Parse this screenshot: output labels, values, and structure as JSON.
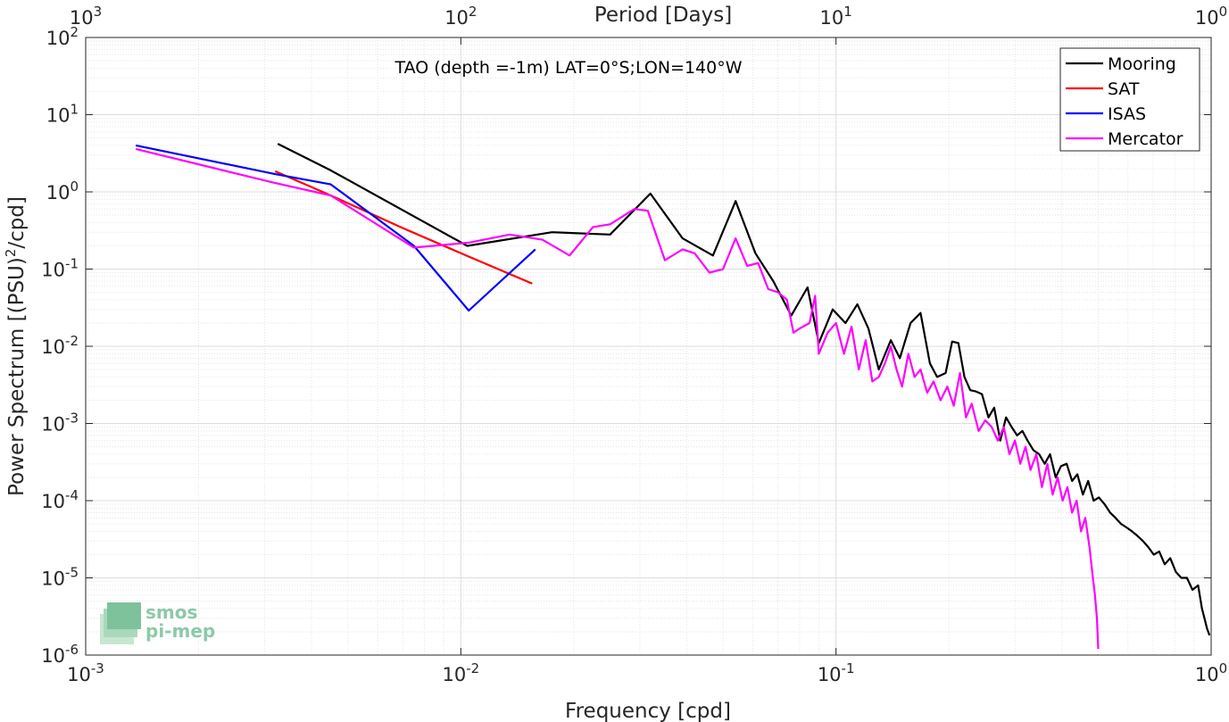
{
  "chart_data": {
    "type": "line",
    "title": "TAO (depth =-1m) LAT=0°S;LON=140°W",
    "xlabel": "Frequency [cpd]",
    "ylabel_main": "Power Spectrum [(PSU)",
    "ylabel_sup": "2",
    "ylabel_tail": "/cpd]",
    "top_axis_label": "Period [Days]",
    "x_scale": "log",
    "y_scale": "log",
    "xlim": [
      0.001,
      1
    ],
    "ylim": [
      1e-06,
      100
    ],
    "grid": true,
    "minor_grid": true,
    "legend_position": "top-right",
    "x_ticks": [
      {
        "value": 0.001,
        "base": "10",
        "exp": "-3"
      },
      {
        "value": 0.01,
        "base": "10",
        "exp": "-2"
      },
      {
        "value": 0.1,
        "base": "10",
        "exp": "-1"
      },
      {
        "value": 1,
        "base": "10",
        "exp": "0"
      }
    ],
    "y_ticks": [
      {
        "value": 100,
        "base": "10",
        "exp": "2"
      },
      {
        "value": 10,
        "base": "10",
        "exp": "1"
      },
      {
        "value": 1,
        "base": "10",
        "exp": "0"
      },
      {
        "value": 0.1,
        "base": "10",
        "exp": "-1"
      },
      {
        "value": 0.01,
        "base": "10",
        "exp": "-2"
      },
      {
        "value": 0.001,
        "base": "10",
        "exp": "-3"
      },
      {
        "value": 0.0001,
        "base": "10",
        "exp": "-4"
      },
      {
        "value": 1e-05,
        "base": "10",
        "exp": "-5"
      },
      {
        "value": 1e-06,
        "base": "10",
        "exp": "-6"
      }
    ],
    "top_ticks": [
      {
        "freq": 0.001,
        "base": "10",
        "exp": "3"
      },
      {
        "freq": 0.01,
        "base": "10",
        "exp": "2"
      },
      {
        "freq": 0.1,
        "base": "10",
        "exp": "1"
      },
      {
        "freq": 1,
        "base": "10",
        "exp": "0"
      }
    ],
    "series": [
      {
        "name": "Mooring",
        "color": "#000000",
        "points": [
          [
            0.00325,
            4.2
          ],
          [
            0.0045,
            1.9
          ],
          [
            0.0104,
            0.2
          ],
          [
            0.0175,
            0.3
          ],
          [
            0.025,
            0.28
          ],
          [
            0.032,
            0.95
          ],
          [
            0.039,
            0.25
          ],
          [
            0.047,
            0.15
          ],
          [
            0.054,
            0.76
          ],
          [
            0.061,
            0.16
          ],
          [
            0.068,
            0.07
          ],
          [
            0.076,
            0.025
          ],
          [
            0.084,
            0.058
          ],
          [
            0.09,
            0.011
          ],
          [
            0.098,
            0.03
          ],
          [
            0.106,
            0.02
          ],
          [
            0.114,
            0.035
          ],
          [
            0.122,
            0.017
          ],
          [
            0.13,
            0.005
          ],
          [
            0.14,
            0.012
          ],
          [
            0.148,
            0.007
          ],
          [
            0.158,
            0.02
          ],
          [
            0.168,
            0.027
          ],
          [
            0.178,
            0.006
          ],
          [
            0.186,
            0.004
          ],
          [
            0.196,
            0.0045
          ],
          [
            0.204,
            0.0115
          ],
          [
            0.212,
            0.011
          ],
          [
            0.22,
            0.004
          ],
          [
            0.228,
            0.0027
          ],
          [
            0.236,
            0.0026
          ],
          [
            0.245,
            0.0024
          ],
          [
            0.255,
            0.0012
          ],
          [
            0.264,
            0.0016
          ],
          [
            0.274,
            0.0006
          ],
          [
            0.284,
            0.0012
          ],
          [
            0.294,
            0.0009
          ],
          [
            0.304,
            0.0007
          ],
          [
            0.314,
            0.0008
          ],
          [
            0.324,
            0.0006
          ],
          [
            0.336,
            0.00045
          ],
          [
            0.348,
            0.0004
          ],
          [
            0.36,
            0.0003
          ],
          [
            0.372,
            0.0004
          ],
          [
            0.385,
            0.0002
          ],
          [
            0.398,
            0.00028
          ],
          [
            0.412,
            0.0003
          ],
          [
            0.426,
            0.00018
          ],
          [
            0.44,
            0.00022
          ],
          [
            0.455,
            0.00012
          ],
          [
            0.47,
            0.00018
          ],
          [
            0.486,
            0.0001
          ],
          [
            0.502,
            0.00011
          ],
          [
            0.52,
            9e-05
          ],
          [
            0.538,
            7e-05
          ],
          [
            0.556,
            6e-05
          ],
          [
            0.575,
            5e-05
          ],
          [
            0.595,
            4.5e-05
          ],
          [
            0.615,
            4e-05
          ],
          [
            0.636,
            3.5e-05
          ],
          [
            0.658,
            3e-05
          ],
          [
            0.68,
            2.5e-05
          ],
          [
            0.703,
            2e-05
          ],
          [
            0.727,
            2.2e-05
          ],
          [
            0.752,
            1.5e-05
          ],
          [
            0.778,
            1.8e-05
          ],
          [
            0.805,
            1.2e-05
          ],
          [
            0.833,
            1e-05
          ],
          [
            0.862,
            1e-05
          ],
          [
            0.892,
            7e-06
          ],
          [
            0.923,
            8e-06
          ],
          [
            0.945,
            4e-06
          ],
          [
            0.96,
            3e-06
          ],
          [
            0.975,
            2.2e-06
          ],
          [
            0.99,
            1.8e-06
          ]
        ]
      },
      {
        "name": "SAT",
        "color": "#ff0000",
        "points": [
          [
            0.0032,
            1.85
          ],
          [
            0.0045,
            0.9
          ],
          [
            0.007,
            0.34
          ],
          [
            0.0105,
            0.145
          ],
          [
            0.0155,
            0.065
          ]
        ]
      },
      {
        "name": "ISAS",
        "color": "#0000ff",
        "points": [
          [
            0.00136,
            4.0
          ],
          [
            0.0032,
            1.7
          ],
          [
            0.0045,
            1.25
          ],
          [
            0.0075,
            0.2
          ],
          [
            0.0105,
            0.029
          ],
          [
            0.0158,
            0.18
          ]
        ]
      },
      {
        "name": "Mercator",
        "color": "#ff00ff",
        "points": [
          [
            0.00136,
            3.6
          ],
          [
            0.0032,
            1.3
          ],
          [
            0.0045,
            0.9
          ],
          [
            0.0075,
            0.19
          ],
          [
            0.0105,
            0.22
          ],
          [
            0.0135,
            0.28
          ],
          [
            0.0165,
            0.24
          ],
          [
            0.0195,
            0.15
          ],
          [
            0.0225,
            0.35
          ],
          [
            0.025,
            0.38
          ],
          [
            0.029,
            0.6
          ],
          [
            0.0315,
            0.57
          ],
          [
            0.035,
            0.13
          ],
          [
            0.039,
            0.18
          ],
          [
            0.042,
            0.16
          ],
          [
            0.046,
            0.09
          ],
          [
            0.05,
            0.1
          ],
          [
            0.054,
            0.25
          ],
          [
            0.058,
            0.11
          ],
          [
            0.062,
            0.12
          ],
          [
            0.066,
            0.055
          ],
          [
            0.07,
            0.05
          ],
          [
            0.074,
            0.04
          ],
          [
            0.077,
            0.015
          ],
          [
            0.08,
            0.017
          ],
          [
            0.085,
            0.02
          ],
          [
            0.088,
            0.045
          ],
          [
            0.09,
            0.008
          ],
          [
            0.095,
            0.015
          ],
          [
            0.1,
            0.02
          ],
          [
            0.105,
            0.008
          ],
          [
            0.11,
            0.018
          ],
          [
            0.115,
            0.005
          ],
          [
            0.12,
            0.012
          ],
          [
            0.125,
            0.0035
          ],
          [
            0.13,
            0.004
          ],
          [
            0.135,
            0.006
          ],
          [
            0.14,
            0.01
          ],
          [
            0.145,
            0.005
          ],
          [
            0.15,
            0.003
          ],
          [
            0.156,
            0.008
          ],
          [
            0.162,
            0.004
          ],
          [
            0.168,
            0.005
          ],
          [
            0.175,
            0.0025
          ],
          [
            0.182,
            0.0035
          ],
          [
            0.19,
            0.002
          ],
          [
            0.198,
            0.003
          ],
          [
            0.206,
            0.0017
          ],
          [
            0.214,
            0.0045
          ],
          [
            0.222,
            0.0012
          ],
          [
            0.23,
            0.0018
          ],
          [
            0.24,
            0.0008
          ],
          [
            0.25,
            0.0011
          ],
          [
            0.26,
            0.0009
          ],
          [
            0.27,
            0.0006
          ],
          [
            0.28,
            0.0009
          ],
          [
            0.29,
            0.0004
          ],
          [
            0.3,
            0.0006
          ],
          [
            0.31,
            0.0003
          ],
          [
            0.32,
            0.0005
          ],
          [
            0.33,
            0.00025
          ],
          [
            0.342,
            0.0004
          ],
          [
            0.354,
            0.00015
          ],
          [
            0.366,
            0.0003
          ],
          [
            0.378,
            0.00012
          ],
          [
            0.39,
            0.0002
          ],
          [
            0.402,
            0.0001
          ],
          [
            0.414,
            0.00015
          ],
          [
            0.426,
            7e-05
          ],
          [
            0.438,
            0.0001
          ],
          [
            0.45,
            4e-05
          ],
          [
            0.462,
            6e-05
          ],
          [
            0.474,
            2.5e-05
          ],
          [
            0.484,
            1e-05
          ],
          [
            0.49,
            6e-06
          ],
          [
            0.496,
            3e-06
          ],
          [
            0.5,
            1.2e-06
          ]
        ]
      }
    ]
  },
  "logo": {
    "line1": "smos",
    "line2": "pi-mep"
  }
}
